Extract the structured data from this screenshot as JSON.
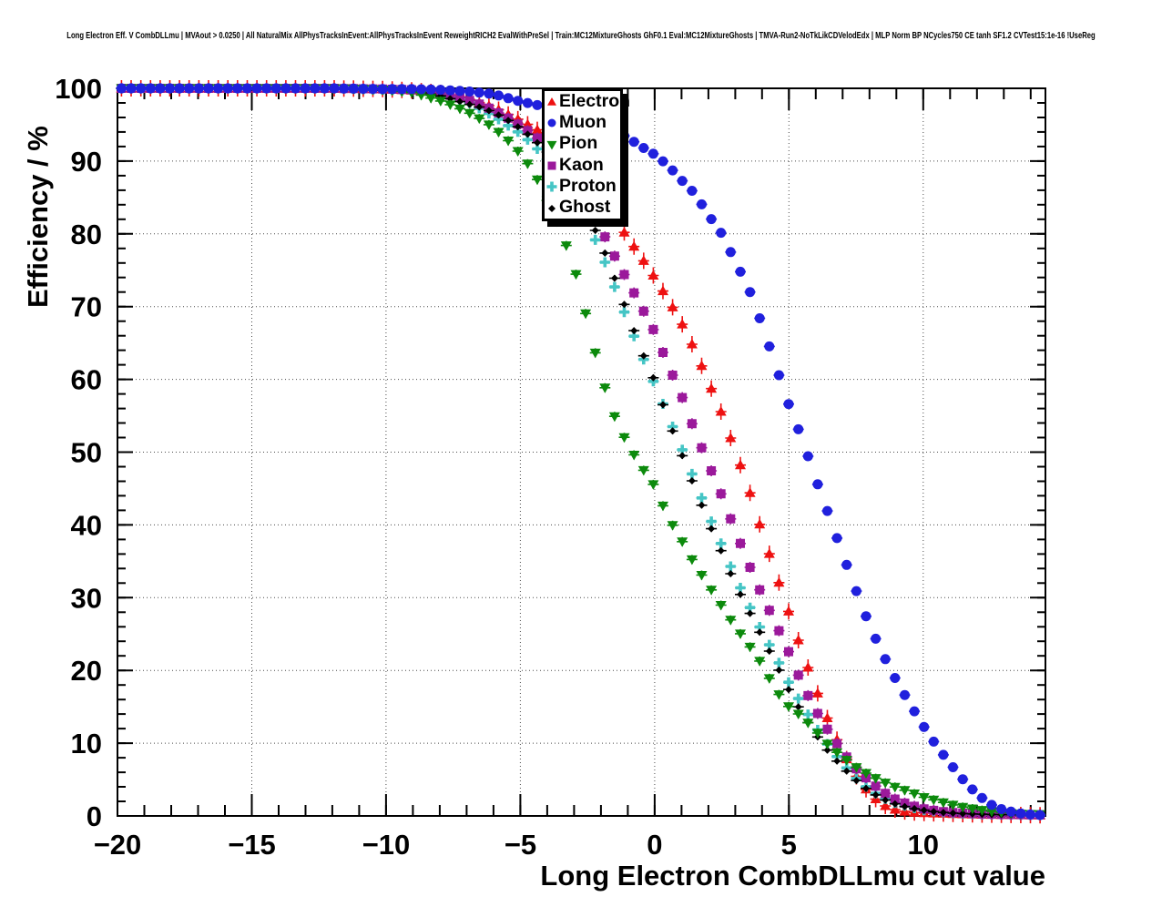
{
  "page_title": "Long Electron Eff. V CombDLLmu | MVAout > 0.0250 | All NaturalMix AllPhysTracksInEvent:AllPhysTracksInEvent ReweightRICH2 EvalWithPreSel | Train:MC12MixtureGhosts GhF0.1 Eval:MC12MixtureGhosts | TMVA-Run2-NoTkLikCDVelodEdx | MLP Norm BP NCycles750 CE tanh SF1.2 CVTest15:1e-16 !UseReg",
  "y_axis": {
    "title": "Efficiency / %",
    "min": 0,
    "max": 100,
    "tick_values": [
      0,
      10,
      20,
      30,
      40,
      50,
      60,
      70,
      80,
      90,
      100
    ],
    "tick_labels": [
      "0",
      "10",
      "20",
      "30",
      "40",
      "50",
      "60",
      "70",
      "80",
      "90",
      "100"
    ],
    "minor_step": 2
  },
  "x_axis": {
    "title": "Long Electron CombDLLmu cut value",
    "min": -20,
    "max": 14.55,
    "tick_values": [
      -20,
      -15,
      -10,
      -5,
      0,
      5,
      10
    ],
    "tick_labels": [
      "−20",
      "−15",
      "−10",
      "−5",
      "0",
      "5",
      "10"
    ],
    "minor_step": 1
  },
  "legend": {
    "items": [
      {
        "label": "Electron",
        "marker": "triangle-up",
        "color": "#ee1111"
      },
      {
        "label": "Muon",
        "marker": "circle",
        "color": "#2020dd"
      },
      {
        "label": "Pion",
        "marker": "triangle-down",
        "color": "#0c8a0c"
      },
      {
        "label": "Kaon",
        "marker": "square",
        "color": "#9b199b"
      },
      {
        "label": "Proton",
        "marker": "plus",
        "color": "#45c5c5"
      },
      {
        "label": "Ghost",
        "marker": "diamond",
        "color": "#000000"
      }
    ]
  },
  "chart_data": {
    "type": "scatter",
    "title": "Long Electron Eff. V CombDLLmu",
    "xlabel": "Long Electron CombDLLmu cut value",
    "ylabel": "Efficiency / %",
    "xlim": [
      -20,
      14.55
    ],
    "ylim": [
      0,
      100
    ],
    "grid": true,
    "legend_position": "top-center",
    "series": [
      {
        "name": "Electron",
        "color": "#ee1111",
        "marker": "triangle-up",
        "points": [
          [
            -20,
            100
          ],
          [
            -18,
            100
          ],
          [
            -16,
            100
          ],
          [
            -14,
            100
          ],
          [
            -12,
            100
          ],
          [
            -10,
            99.9
          ],
          [
            -9,
            99.7
          ],
          [
            -8,
            99.4
          ],
          [
            -7,
            98.6
          ],
          [
            -6.5,
            98.0
          ],
          [
            -6,
            97.4
          ],
          [
            -5.5,
            96.5
          ],
          [
            -5,
            95.6
          ],
          [
            -4.5,
            94.6
          ],
          [
            -4,
            93.4
          ],
          [
            -3.5,
            91.8
          ],
          [
            -3,
            89.8
          ],
          [
            -2.5,
            87.5
          ],
          [
            -2,
            85.0
          ],
          [
            -1.5,
            82.2
          ],
          [
            -1,
            79.5
          ],
          [
            -0.5,
            76.8
          ],
          [
            0,
            74.0
          ],
          [
            0.5,
            71.0
          ],
          [
            1,
            67.8
          ],
          [
            1.5,
            64.0
          ],
          [
            2,
            59.7
          ],
          [
            2.5,
            55.3
          ],
          [
            3,
            50.2
          ],
          [
            3.5,
            45.0
          ],
          [
            4,
            39.0
          ],
          [
            4.5,
            33.5
          ],
          [
            5,
            28.0
          ],
          [
            5.5,
            22.5
          ],
          [
            6,
            17.5
          ],
          [
            6.5,
            12.8
          ],
          [
            7,
            8.8
          ],
          [
            7.5,
            5.5
          ],
          [
            8,
            3.0
          ],
          [
            8.5,
            1.5
          ],
          [
            9,
            0.8
          ],
          [
            9.5,
            0.5
          ],
          [
            10,
            0.4
          ],
          [
            11,
            0.3
          ],
          [
            12,
            0.2
          ],
          [
            13,
            0.15
          ],
          [
            14.5,
            0.1
          ]
        ]
      },
      {
        "name": "Muon",
        "color": "#2020dd",
        "marker": "circle",
        "points": [
          [
            -20,
            100
          ],
          [
            -18,
            100
          ],
          [
            -16,
            100
          ],
          [
            -14,
            100
          ],
          [
            -12,
            100
          ],
          [
            -10,
            99.9
          ],
          [
            -9,
            99.9
          ],
          [
            -8,
            99.8
          ],
          [
            -7,
            99.6
          ],
          [
            -6,
            99.2
          ],
          [
            -5,
            98.2
          ],
          [
            -4.5,
            97.8
          ],
          [
            -4,
            97.4
          ],
          [
            -3,
            96.5
          ],
          [
            -2,
            95.3
          ],
          [
            -1,
            93.2
          ],
          [
            -0.5,
            92.0
          ],
          [
            0,
            90.9
          ],
          [
            0.5,
            89.4
          ],
          [
            1,
            87.4
          ],
          [
            1.5,
            85.5
          ],
          [
            2,
            82.6
          ],
          [
            2.5,
            80.0
          ],
          [
            3,
            76.2
          ],
          [
            3.5,
            72.5
          ],
          [
            4,
            67.5
          ],
          [
            4.5,
            62.0
          ],
          [
            5,
            56.5
          ],
          [
            5.5,
            51.7
          ],
          [
            6,
            46.3
          ],
          [
            6.5,
            41.2
          ],
          [
            7,
            36.0
          ],
          [
            7.5,
            31.0
          ],
          [
            8,
            26.2
          ],
          [
            8.5,
            22.2
          ],
          [
            9,
            18.6
          ],
          [
            9.5,
            15.4
          ],
          [
            10,
            12.4
          ],
          [
            10.5,
            9.6
          ],
          [
            11,
            7.2
          ],
          [
            11.5,
            4.9
          ],
          [
            12,
            3.0
          ],
          [
            12.5,
            1.6
          ],
          [
            13,
            0.8
          ],
          [
            13.5,
            0.4
          ],
          [
            14,
            0.2
          ],
          [
            14.5,
            0.1
          ]
        ]
      },
      {
        "name": "Pion",
        "color": "#0c8a0c",
        "marker": "triangle-down",
        "points": [
          [
            -20,
            100
          ],
          [
            -18,
            100
          ],
          [
            -16,
            100
          ],
          [
            -14,
            100
          ],
          [
            -12,
            100
          ],
          [
            -10,
            99.8
          ],
          [
            -9,
            99.4
          ],
          [
            -8,
            98.3
          ],
          [
            -7.5,
            97.6
          ],
          [
            -7,
            96.8
          ],
          [
            -6.5,
            95.8
          ],
          [
            -6,
            94.6
          ],
          [
            -5.5,
            93.0
          ],
          [
            -5,
            91.0
          ],
          [
            -4.5,
            88.5
          ],
          [
            -4,
            84.5
          ],
          [
            -3.5,
            80.5
          ],
          [
            -3,
            75.5
          ],
          [
            -2.5,
            68.0
          ],
          [
            -2,
            60.5
          ],
          [
            -1.5,
            55.0
          ],
          [
            -1,
            51.0
          ],
          [
            -0.5,
            48.0
          ],
          [
            0,
            45.3
          ],
          [
            0.5,
            41.0
          ],
          [
            1,
            37.9
          ],
          [
            1.5,
            34.5
          ],
          [
            2,
            31.7
          ],
          [
            2.5,
            28.8
          ],
          [
            3,
            26.0
          ],
          [
            3.5,
            23.5
          ],
          [
            4,
            20.8
          ],
          [
            4.5,
            17.3
          ],
          [
            5,
            15.0
          ],
          [
            5.5,
            13.6
          ],
          [
            6,
            11.7
          ],
          [
            6.5,
            9.6
          ],
          [
            7,
            8.1
          ],
          [
            7.5,
            6.7
          ],
          [
            8,
            5.6
          ],
          [
            8.5,
            4.7
          ],
          [
            9,
            3.9
          ],
          [
            9.5,
            3.3
          ],
          [
            10,
            2.6
          ],
          [
            10.5,
            2.1
          ],
          [
            11,
            1.6
          ],
          [
            11.5,
            1.2
          ],
          [
            12,
            0.9
          ],
          [
            12.5,
            0.65
          ],
          [
            13,
            0.45
          ],
          [
            13.5,
            0.3
          ],
          [
            14.5,
            0.2
          ]
        ]
      },
      {
        "name": "Kaon",
        "color": "#9b199b",
        "marker": "square",
        "points": [
          [
            -20,
            100
          ],
          [
            -18,
            100
          ],
          [
            -16,
            100
          ],
          [
            -14,
            100
          ],
          [
            -12,
            100
          ],
          [
            -10,
            99.9
          ],
          [
            -9,
            99.8
          ],
          [
            -8,
            99.4
          ],
          [
            -7,
            98.5
          ],
          [
            -6.5,
            97.8
          ],
          [
            -6,
            97.0
          ],
          [
            -5.5,
            96.0
          ],
          [
            -5,
            94.9
          ],
          [
            -4.5,
            93.6
          ],
          [
            -4,
            92.0
          ],
          [
            -3.5,
            90.0
          ],
          [
            -3,
            87.6
          ],
          [
            -2.5,
            84.5
          ],
          [
            -2,
            80.7
          ],
          [
            -1.5,
            77.0
          ],
          [
            -1,
            73.5
          ],
          [
            -0.5,
            70.0
          ],
          [
            0,
            66.5
          ],
          [
            0.5,
            62.0
          ],
          [
            1,
            57.8
          ],
          [
            1.5,
            52.8
          ],
          [
            2,
            48.4
          ],
          [
            2.5,
            44.0
          ],
          [
            3,
            39.2
          ],
          [
            3.5,
            34.6
          ],
          [
            4,
            30.3
          ],
          [
            4.5,
            26.5
          ],
          [
            5,
            22.5
          ],
          [
            5.5,
            18.0
          ],
          [
            6,
            14.5
          ],
          [
            6.5,
            11.5
          ],
          [
            7,
            8.8
          ],
          [
            7.5,
            6.5
          ],
          [
            8,
            4.8
          ],
          [
            8.5,
            3.3
          ],
          [
            9,
            2.2
          ],
          [
            9.5,
            1.5
          ],
          [
            10,
            1.0
          ],
          [
            10.5,
            0.7
          ],
          [
            11,
            0.5
          ],
          [
            12,
            0.3
          ],
          [
            13,
            0.2
          ],
          [
            14.5,
            0.15
          ]
        ]
      },
      {
        "name": "Proton",
        "color": "#45c5c5",
        "marker": "plus",
        "points": [
          [
            -20,
            100
          ],
          [
            -18,
            100
          ],
          [
            -16,
            100
          ],
          [
            -14,
            100
          ],
          [
            -12,
            100
          ],
          [
            -10,
            99.8
          ],
          [
            -9,
            99.7
          ],
          [
            -8,
            99.2
          ],
          [
            -7,
            98.2
          ],
          [
            -6.5,
            97.2
          ],
          [
            -6,
            96.2
          ],
          [
            -5.5,
            95.0
          ],
          [
            -5,
            93.8
          ],
          [
            -4.5,
            92.2
          ],
          [
            -4,
            90.2
          ],
          [
            -3.5,
            88.0
          ],
          [
            -3,
            85.0
          ],
          [
            -2.5,
            81.5
          ],
          [
            -2,
            77.5
          ],
          [
            -1.5,
            72.8
          ],
          [
            -1,
            68.0
          ],
          [
            -0.5,
            63.5
          ],
          [
            0,
            59.3
          ],
          [
            0.5,
            55.0
          ],
          [
            1,
            50.6
          ],
          [
            1.5,
            46.0
          ],
          [
            2,
            41.4
          ],
          [
            2.5,
            37.2
          ],
          [
            3,
            32.8
          ],
          [
            3.5,
            29.0
          ],
          [
            4,
            25.3
          ],
          [
            4.5,
            22.0
          ],
          [
            5,
            18.3
          ],
          [
            5.5,
            15.2
          ],
          [
            6,
            12.2
          ],
          [
            6.5,
            9.5
          ],
          [
            7,
            7.2
          ],
          [
            7.5,
            5.2
          ],
          [
            8,
            3.6
          ],
          [
            8.5,
            2.5
          ],
          [
            9,
            1.7
          ],
          [
            9.5,
            1.2
          ],
          [
            10,
            0.8
          ],
          [
            10.5,
            0.6
          ],
          [
            11,
            0.4
          ],
          [
            12,
            0.25
          ],
          [
            13,
            0.18
          ],
          [
            14.5,
            0.12
          ]
        ]
      },
      {
        "name": "Ghost",
        "color": "#000000",
        "marker": "diamond",
        "points": [
          [
            -20,
            100
          ],
          [
            -18,
            100
          ],
          [
            -16,
            100
          ],
          [
            -14,
            100
          ],
          [
            -12,
            100
          ],
          [
            -10,
            99.7
          ],
          [
            -9,
            99.6
          ],
          [
            -8,
            99.0
          ],
          [
            -7,
            97.9
          ],
          [
            -6.5,
            97.4
          ],
          [
            -6,
            96.7
          ],
          [
            -5.5,
            95.7
          ],
          [
            -5,
            94.5
          ],
          [
            -4.5,
            93.0
          ],
          [
            -4,
            91.2
          ],
          [
            -3.5,
            89.0
          ],
          [
            -3,
            86.2
          ],
          [
            -2.5,
            82.8
          ],
          [
            -2,
            78.8
          ],
          [
            -1.5,
            74.0
          ],
          [
            -1,
            69.0
          ],
          [
            -0.5,
            64.0
          ],
          [
            0,
            59.8
          ],
          [
            0.5,
            54.5
          ],
          [
            1,
            49.8
          ],
          [
            1.5,
            45.0
          ],
          [
            2,
            40.4
          ],
          [
            2.5,
            36.2
          ],
          [
            3,
            31.8
          ],
          [
            3.5,
            28.2
          ],
          [
            4,
            24.6
          ],
          [
            4.5,
            21.0
          ],
          [
            5,
            17.3
          ],
          [
            5.5,
            14.0
          ],
          [
            6,
            11.2
          ],
          [
            6.5,
            8.7
          ],
          [
            7,
            6.7
          ],
          [
            7.5,
            4.9
          ],
          [
            8,
            3.4
          ],
          [
            8.5,
            2.3
          ],
          [
            9,
            1.6
          ],
          [
            9.5,
            1.1
          ],
          [
            10,
            0.8
          ],
          [
            10.5,
            0.55
          ],
          [
            11,
            0.4
          ],
          [
            12,
            0.25
          ],
          [
            13,
            0.17
          ],
          [
            14.5,
            0.12
          ]
        ]
      }
    ]
  }
}
